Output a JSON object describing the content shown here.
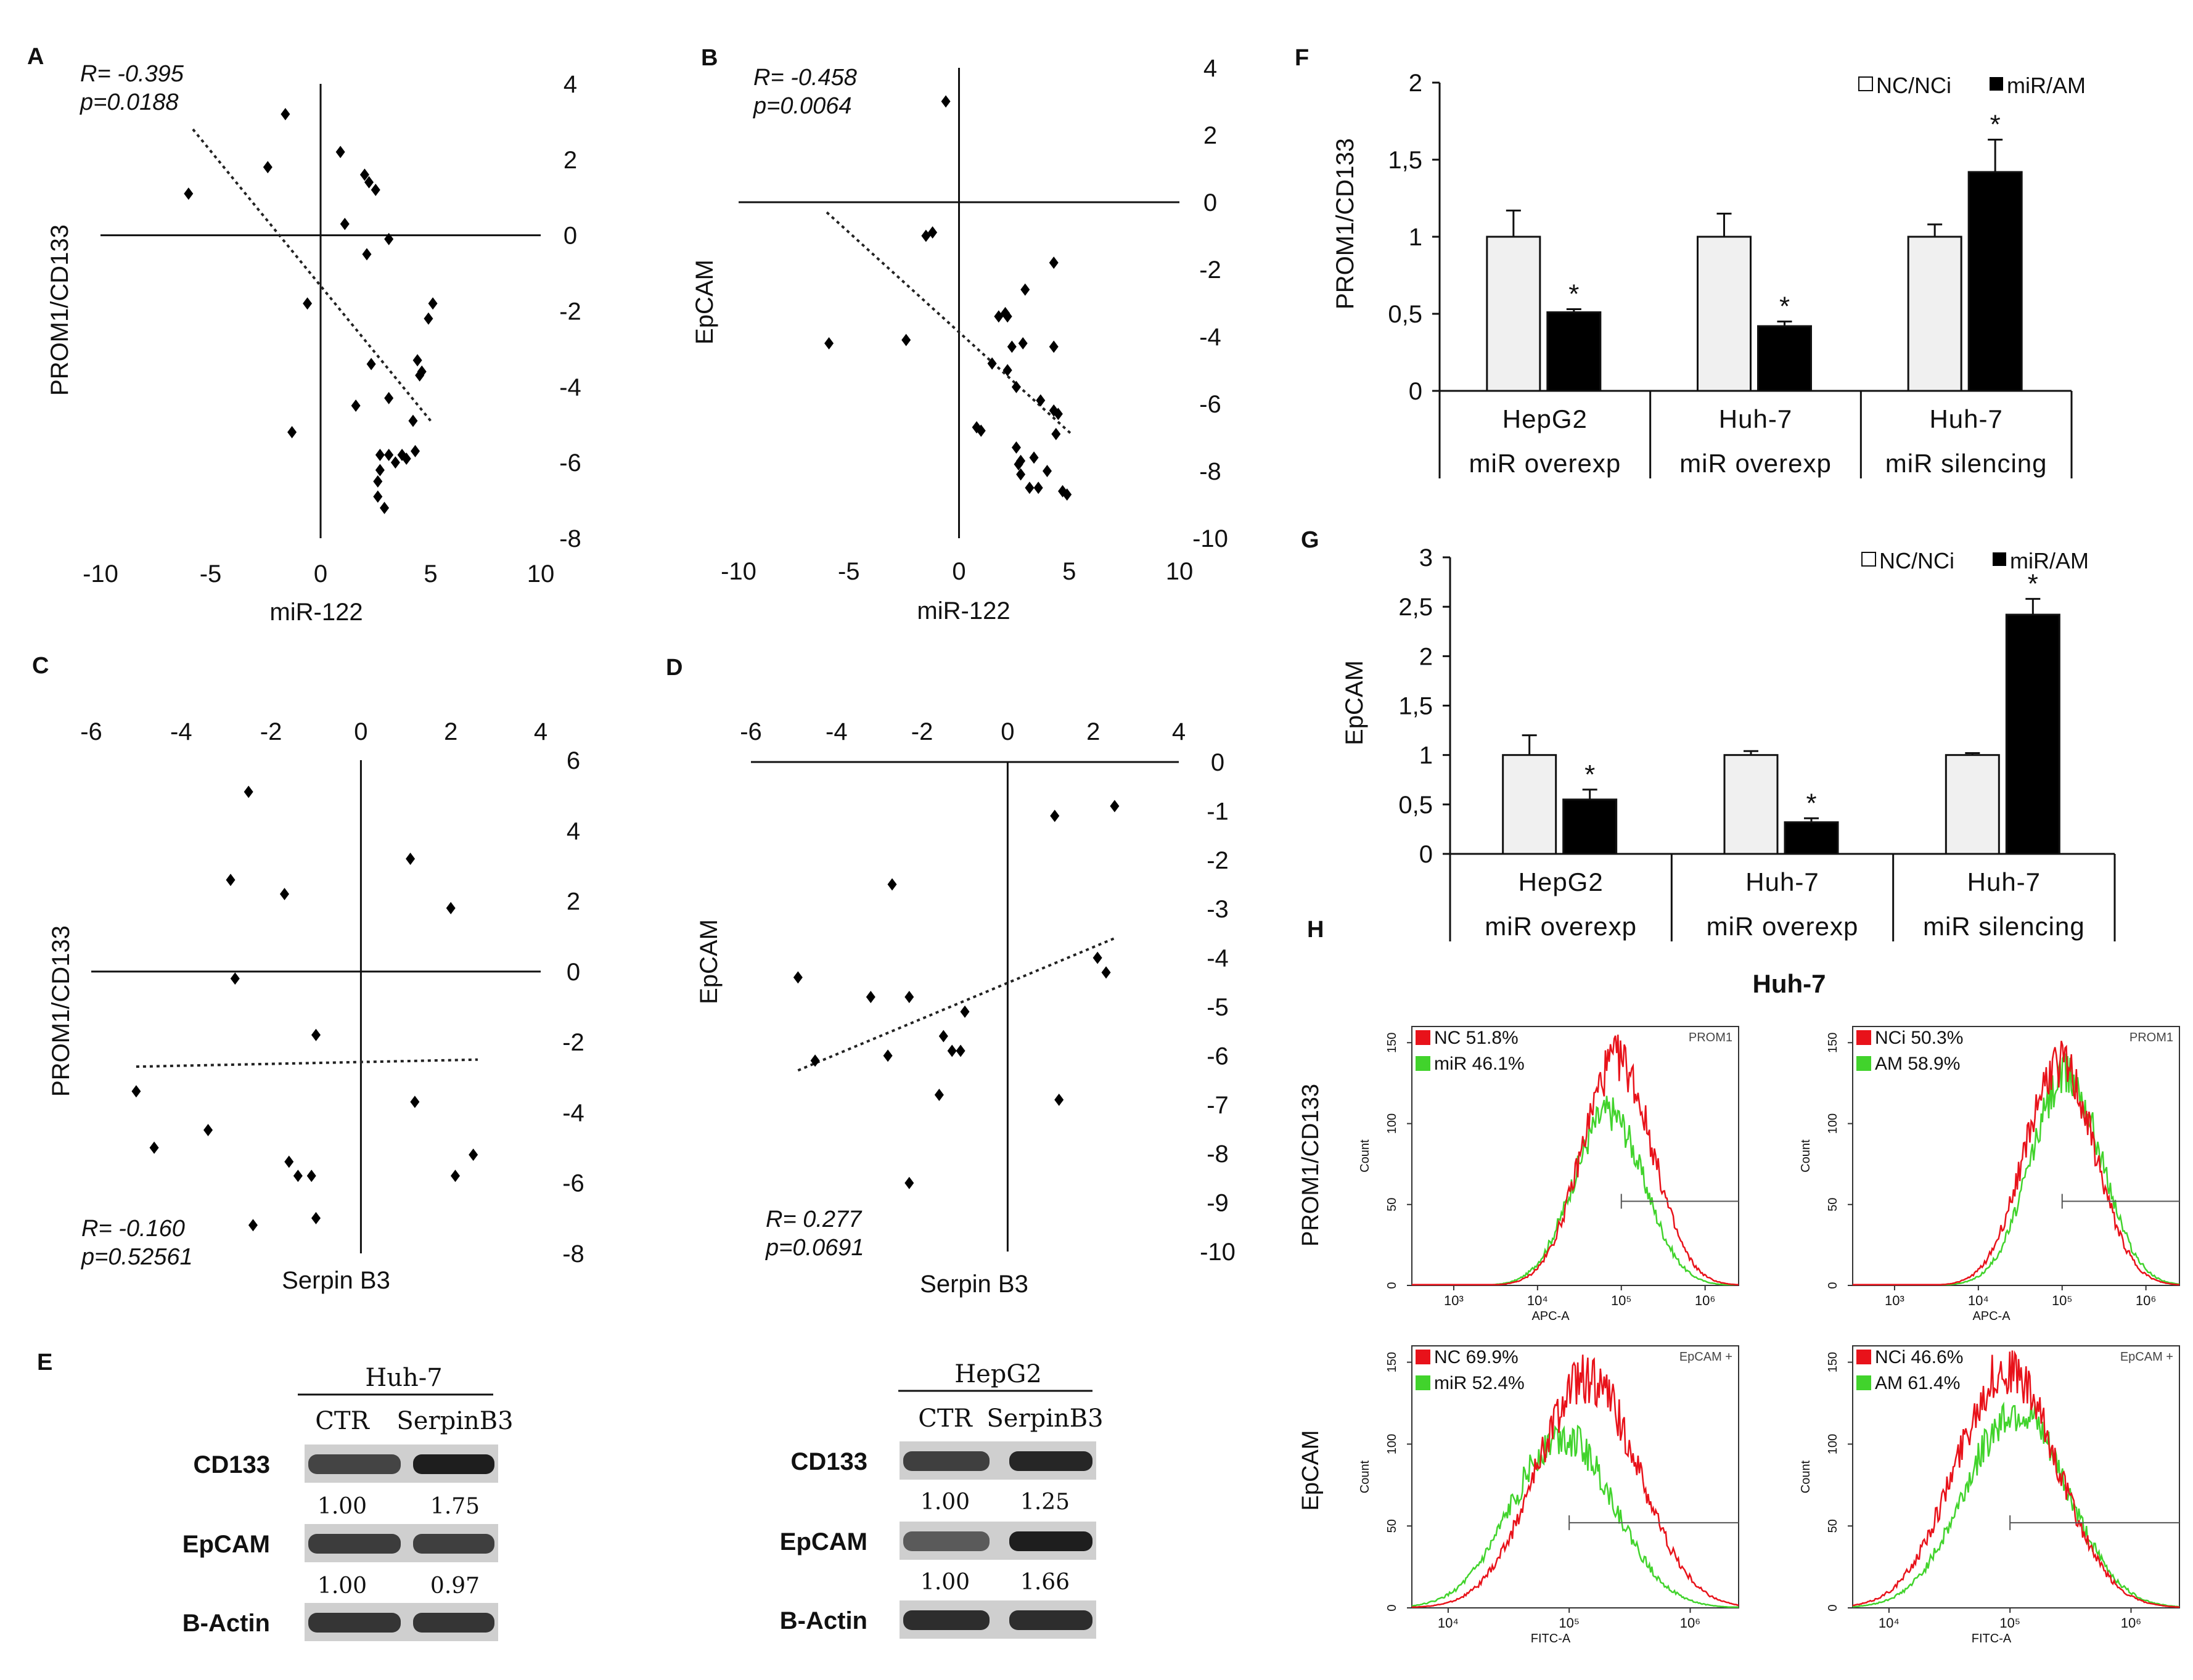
{
  "chart_data": [
    {
      "id": "A",
      "type": "scatter",
      "panel_label": "A",
      "xlabel": "miR-122",
      "ylabel": "PROM1/CD133",
      "xlim": [
        -10,
        10
      ],
      "ylim": [
        -8,
        4
      ],
      "x_ticks": [
        "-10",
        "-5",
        "0",
        "5",
        "10"
      ],
      "y_ticks": [
        "4",
        "2",
        "0",
        "-2",
        "-4",
        "-6",
        "-8"
      ],
      "stat_r": "R= -0.395",
      "stat_p": "p=0.0188",
      "trendline": {
        "x1": -5.8,
        "y1": 2.8,
        "x2": 5.0,
        "y2": -4.9
      },
      "points": [
        [
          -6.0,
          1.1
        ],
        [
          -1.6,
          3.2
        ],
        [
          -2.4,
          1.8
        ],
        [
          0.9,
          2.2
        ],
        [
          2.0,
          1.6
        ],
        [
          2.2,
          1.4
        ],
        [
          2.5,
          1.2
        ],
        [
          1.1,
          0.3
        ],
        [
          3.1,
          -0.1
        ],
        [
          2.1,
          -0.5
        ],
        [
          -0.6,
          -1.8
        ],
        [
          5.1,
          -1.8
        ],
        [
          4.9,
          -2.2
        ],
        [
          2.3,
          -3.4
        ],
        [
          4.4,
          -3.3
        ],
        [
          4.6,
          -3.6
        ],
        [
          4.5,
          -3.7
        ],
        [
          1.6,
          -4.5
        ],
        [
          3.1,
          -4.3
        ],
        [
          4.2,
          -4.9
        ],
        [
          -1.3,
          -5.2
        ],
        [
          2.7,
          -5.8
        ],
        [
          3.1,
          -5.8
        ],
        [
          3.7,
          -5.8
        ],
        [
          3.9,
          -5.9
        ],
        [
          4.3,
          -5.7
        ],
        [
          3.4,
          -6.0
        ],
        [
          2.7,
          -6.2
        ],
        [
          2.6,
          -6.5
        ],
        [
          2.6,
          -6.9
        ],
        [
          2.9,
          -7.2
        ]
      ]
    },
    {
      "id": "B",
      "type": "scatter",
      "panel_label": "B",
      "xlabel": "miR-122",
      "ylabel": "EpCAM",
      "xlim": [
        -10,
        10
      ],
      "ylim": [
        -10,
        4
      ],
      "x_ticks": [
        "-10",
        "-5",
        "0",
        "5",
        "10"
      ],
      "y_ticks": [
        "4",
        "2",
        "0",
        "-2",
        "-4",
        "-6",
        "-8",
        "-10"
      ],
      "stat_r": "R= -0.458",
      "stat_p": "p=0.0064",
      "trendline": {
        "x1": -6.0,
        "y1": -0.3,
        "x2": 5.1,
        "y2": -6.9
      },
      "points": [
        [
          -0.6,
          3.0
        ],
        [
          -1.5,
          -1.0
        ],
        [
          -1.2,
          -0.9
        ],
        [
          4.3,
          -1.8
        ],
        [
          -5.9,
          -4.2
        ],
        [
          -2.4,
          -4.1
        ],
        [
          1.8,
          -3.4
        ],
        [
          2.1,
          -3.3
        ],
        [
          2.2,
          -3.4
        ],
        [
          3.0,
          -2.6
        ],
        [
          2.4,
          -4.3
        ],
        [
          2.9,
          -4.2
        ],
        [
          4.3,
          -4.3
        ],
        [
          1.5,
          -4.8
        ],
        [
          2.2,
          -5.0
        ],
        [
          2.6,
          -5.5
        ],
        [
          3.7,
          -5.9
        ],
        [
          4.3,
          -6.2
        ],
        [
          4.5,
          -6.3
        ],
        [
          4.4,
          -6.9
        ],
        [
          0.8,
          -6.7
        ],
        [
          1.0,
          -6.8
        ],
        [
          2.6,
          -7.3
        ],
        [
          3.4,
          -7.6
        ],
        [
          2.8,
          -7.7
        ],
        [
          2.7,
          -7.8
        ],
        [
          4.0,
          -8.0
        ],
        [
          2.8,
          -8.1
        ],
        [
          3.2,
          -8.5
        ],
        [
          3.6,
          -8.5
        ],
        [
          4.7,
          -8.6
        ],
        [
          4.9,
          -8.7
        ]
      ]
    },
    {
      "id": "C",
      "type": "scatter",
      "panel_label": "C",
      "xlabel": "Serpin B3",
      "ylabel": "PROM1/CD133",
      "xlim": [
        -6,
        4
      ],
      "ylim": [
        -8,
        6
      ],
      "x_ticks": [
        "-6",
        "-4",
        "-2",
        "0",
        "2",
        "4"
      ],
      "y_ticks": [
        "6",
        "4",
        "2",
        "0",
        "-2",
        "-4",
        "-6",
        "-8"
      ],
      "stat_r": "R= -0.160",
      "stat_p": "p=0.52561",
      "trendline": {
        "x1": -5.0,
        "y1": -2.7,
        "x2": 2.6,
        "y2": -2.5
      },
      "points": [
        [
          -2.5,
          5.1
        ],
        [
          -2.9,
          2.6
        ],
        [
          -1.7,
          2.2
        ],
        [
          1.1,
          3.2
        ],
        [
          2.0,
          1.8
        ],
        [
          -2.8,
          -0.2
        ],
        [
          -1.0,
          -1.8
        ],
        [
          -5.0,
          -3.4
        ],
        [
          -4.6,
          -5.0
        ],
        [
          -3.4,
          -4.5
        ],
        [
          -1.6,
          -5.4
        ],
        [
          -1.4,
          -5.8
        ],
        [
          -1.1,
          -5.8
        ],
        [
          -1.0,
          -7.0
        ],
        [
          -2.4,
          -7.2
        ],
        [
          1.2,
          -3.7
        ],
        [
          2.1,
          -5.8
        ],
        [
          2.5,
          -5.2
        ]
      ]
    },
    {
      "id": "D",
      "type": "scatter",
      "panel_label": "D",
      "xlabel": "Serpin B3",
      "ylabel": "EpCAM",
      "xlim": [
        -6,
        4
      ],
      "ylim": [
        -10,
        0
      ],
      "x_ticks": [
        "-6",
        "-4",
        "-2",
        "0",
        "2",
        "4"
      ],
      "y_ticks": [
        "0",
        "-1",
        "-2",
        "-3",
        "-4",
        "-5",
        "-6",
        "-7",
        "-8",
        "-9",
        "-10"
      ],
      "stat_r": "R= 0.277",
      "stat_p": "p=0.0691",
      "trendline": {
        "x1": -4.9,
        "y1": -6.3,
        "x2": 2.5,
        "y2": -3.6
      },
      "points": [
        [
          2.5,
          -0.9
        ],
        [
          1.1,
          -1.1
        ],
        [
          -2.7,
          -2.5
        ],
        [
          -4.9,
          -4.4
        ],
        [
          -3.2,
          -4.8
        ],
        [
          -2.3,
          -4.8
        ],
        [
          -1.0,
          -5.1
        ],
        [
          -1.5,
          -5.6
        ],
        [
          -1.3,
          -5.9
        ],
        [
          -1.1,
          -5.9
        ],
        [
          -2.8,
          -6.0
        ],
        [
          -4.5,
          -6.1
        ],
        [
          -1.6,
          -6.8
        ],
        [
          2.1,
          -4.0
        ],
        [
          2.3,
          -4.3
        ],
        [
          1.2,
          -6.9
        ],
        [
          -2.3,
          -8.6
        ]
      ]
    },
    {
      "id": "F",
      "type": "bar",
      "panel_label": "F",
      "ylabel": "PROM1/CD133",
      "ylim": [
        0,
        2
      ],
      "y_ticks": [
        "2",
        "1,5",
        "1",
        "0,5",
        "0"
      ],
      "categories": [
        {
          "line1": "HepG2",
          "line2": "miR overexp"
        },
        {
          "line1": "Huh-7",
          "line2": "miR overexp"
        },
        {
          "line1": "Huh-7",
          "line2": "miR silencing"
        }
      ],
      "series": [
        {
          "name": "NC/NCi",
          "values": [
            1.0,
            1.0,
            1.0
          ],
          "errors": [
            0.17,
            0.15,
            0.08
          ],
          "color": "#f0f0f0"
        },
        {
          "name": "miR/AM",
          "values": [
            0.51,
            0.42,
            1.42
          ],
          "errors": [
            0.02,
            0.03,
            0.21
          ],
          "color": "#000000"
        }
      ],
      "significance": [
        "*",
        "*",
        "*"
      ],
      "legend": [
        "NC/NCi",
        "miR/AM"
      ]
    },
    {
      "id": "G",
      "type": "bar",
      "panel_label": "G",
      "ylabel": "EpCAM",
      "ylim": [
        0,
        3
      ],
      "y_ticks": [
        "3",
        "2,5",
        "2",
        "1,5",
        "1",
        "0,5",
        "0"
      ],
      "categories": [
        {
          "line1": "HepG2",
          "line2": "miR overexp"
        },
        {
          "line1": "Huh-7",
          "line2": "miR overexp"
        },
        {
          "line1": "Huh-7",
          "line2": "miR silencing"
        }
      ],
      "series": [
        {
          "name": "NC/NCi",
          "values": [
            1.0,
            1.0,
            1.0
          ],
          "errors": [
            0.2,
            0.04,
            0.02
          ],
          "color": "#f0f0f0"
        },
        {
          "name": "miR/AM",
          "values": [
            0.55,
            0.32,
            2.42
          ],
          "errors": [
            0.1,
            0.04,
            0.16
          ],
          "color": "#000000"
        }
      ],
      "significance": [
        "*",
        "*",
        "*"
      ],
      "legend": [
        "NC/NCi",
        "miR/AM"
      ]
    },
    {
      "id": "H",
      "type": "histogram-overlay",
      "panel_label": "H",
      "title": "Huh-7",
      "row_labels": [
        "PROM1/CD133",
        "EpCAM"
      ],
      "plots": [
        {
          "marker": "PROM1",
          "xlabel": "APC-A",
          "x_ticks": [
            "10³",
            "10⁴",
            "10⁵",
            "10⁶"
          ],
          "y_ticks": [
            "150",
            "100",
            "50",
            "0"
          ],
          "ylabel": "Count",
          "legend": [
            {
              "label": "NC 51.8%",
              "color": "#e8121a"
            },
            {
              "label": "miR 46.1%",
              "color": "#41d32c"
            }
          ],
          "red_peak_decade": 4.95,
          "green_peak_decade": 4.85,
          "red_peak_count": 140,
          "green_peak_count": 107,
          "gate_decade": 5.0
        },
        {
          "marker": "PROM1",
          "xlabel": "APC-A",
          "x_ticks": [
            "10³",
            "10⁴",
            "10⁵",
            "10⁶"
          ],
          "y_ticks": [
            "150",
            "100",
            "50",
            "0"
          ],
          "ylabel": "Count",
          "legend": [
            {
              "label": "NCi 50.3%",
              "color": "#e8121a"
            },
            {
              "label": "AM 58.9%",
              "color": "#41d32c"
            }
          ],
          "red_peak_decade": 4.97,
          "green_peak_decade": 5.05,
          "red_peak_count": 137,
          "green_peak_count": 130,
          "gate_decade": 5.0
        },
        {
          "marker": "EpCAM +",
          "xlabel": "FITC-A",
          "x_ticks": [
            "10⁴",
            "10⁵",
            "10⁶"
          ],
          "y_ticks": [
            "150",
            "100",
            "50",
            "0"
          ],
          "ylabel": "Count",
          "legend": [
            {
              "label": "NC 69.9%",
              "color": "#e8121a"
            },
            {
              "label": "miR 52.4%",
              "color": "#41d32c"
            }
          ],
          "red_peak_decade": 5.15,
          "green_peak_decade": 4.95,
          "red_peak_count": 140,
          "green_peak_count": 105,
          "gate_decade": 5.0
        },
        {
          "marker": "EpCAM +",
          "xlabel": "FITC-A",
          "x_ticks": [
            "10⁴",
            "10⁵",
            "10⁶"
          ],
          "y_ticks": [
            "150",
            "100",
            "50",
            "0"
          ],
          "ylabel": "Count",
          "legend": [
            {
              "label": "NCi 46.6%",
              "color": "#e8121a"
            },
            {
              "label": "AM 61.4%",
              "color": "#41d32c"
            }
          ],
          "red_peak_decade": 4.97,
          "green_peak_decade": 5.05,
          "red_peak_count": 145,
          "green_peak_count": 120,
          "gate_decade": 5.0
        }
      ]
    }
  ],
  "blot_panel": {
    "panel_label": "E",
    "blots": [
      {
        "cell_line": "Huh-7",
        "columns": [
          "CTR",
          "SerpinB3"
        ],
        "rows": [
          {
            "protein": "CD133",
            "values": [
              "1.00",
              "1.75"
            ],
            "intensity": [
              0.75,
              1.0
            ]
          },
          {
            "protein": "EpCAM",
            "values": [
              "1.00",
              "0.97"
            ],
            "intensity": [
              0.8,
              0.78
            ]
          },
          {
            "protein": "B-Actin",
            "values": [],
            "intensity": [
              0.85,
              0.85
            ]
          }
        ]
      },
      {
        "cell_line": "HepG2",
        "columns": [
          "CTR",
          "SerpinB3"
        ],
        "rows": [
          {
            "protein": "CD133",
            "values": [
              "1.00",
              "1.25"
            ],
            "intensity": [
              0.78,
              0.95
            ]
          },
          {
            "protein": "EpCAM",
            "values": [
              "1.00",
              "1.66"
            ],
            "intensity": [
              0.6,
              1.0
            ]
          },
          {
            "protein": "B-Actin",
            "values": [],
            "intensity": [
              0.9,
              0.9
            ]
          }
        ]
      }
    ]
  }
}
